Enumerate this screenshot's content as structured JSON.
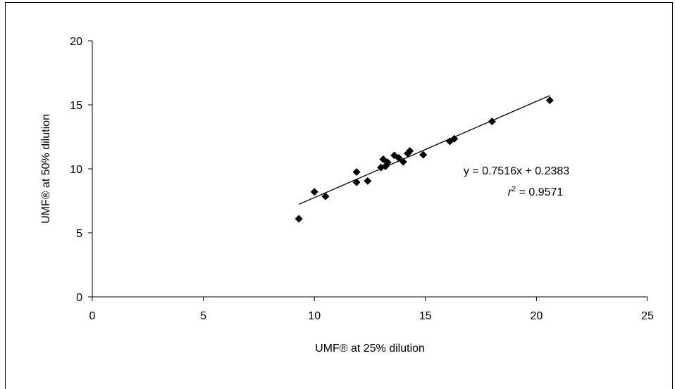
{
  "chart_data": {
    "type": "scatter",
    "xlabel": "UMF® at 25% dilution",
    "ylabel": "UMF® at 50% dilution",
    "xlim": [
      0,
      25
    ],
    "ylim": [
      0,
      20
    ],
    "xticks": [
      0,
      5,
      10,
      15,
      20,
      25
    ],
    "yticks": [
      0,
      5,
      10,
      15,
      20
    ],
    "x_tick_labels": [
      "0",
      "5",
      "10",
      "15",
      "20",
      "25"
    ],
    "y_tick_labels": [
      "0",
      "5",
      "10",
      "15",
      "20"
    ],
    "grid": false,
    "marker": "diamond",
    "marker_color": "#000000",
    "points": [
      {
        "x": 9.3,
        "y": 6.1
      },
      {
        "x": 10.0,
        "y": 8.2
      },
      {
        "x": 10.5,
        "y": 7.85
      },
      {
        "x": 11.9,
        "y": 9.75
      },
      {
        "x": 11.9,
        "y": 8.95
      },
      {
        "x": 12.4,
        "y": 9.05
      },
      {
        "x": 13.0,
        "y": 10.1
      },
      {
        "x": 13.1,
        "y": 10.75
      },
      {
        "x": 13.2,
        "y": 10.2
      },
      {
        "x": 13.3,
        "y": 10.5
      },
      {
        "x": 13.6,
        "y": 11.05
      },
      {
        "x": 13.8,
        "y": 10.85
      },
      {
        "x": 14.0,
        "y": 10.55
      },
      {
        "x": 14.2,
        "y": 11.2
      },
      {
        "x": 14.3,
        "y": 11.4
      },
      {
        "x": 14.9,
        "y": 11.1
      },
      {
        "x": 16.1,
        "y": 12.15
      },
      {
        "x": 16.3,
        "y": 12.35
      },
      {
        "x": 18.0,
        "y": 13.7
      },
      {
        "x": 20.6,
        "y": 15.35
      }
    ],
    "trendline": {
      "type": "linear",
      "slope": 0.7516,
      "intercept": 0.2383,
      "x_range": [
        9.3,
        20.6
      ],
      "equation_label": "y = 0.7516x + 0.2383",
      "r2_label_prefix": "r",
      "r2_label_sup": "2",
      "r2_label_value": " = 0.9571"
    }
  }
}
